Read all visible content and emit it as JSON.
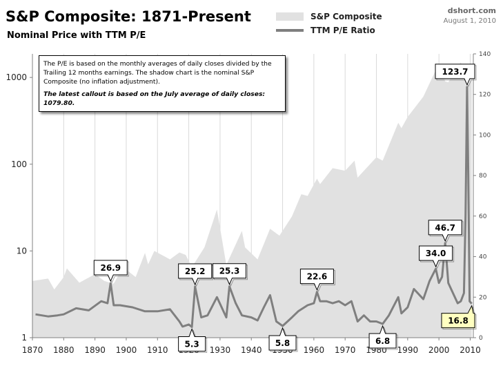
{
  "header": {
    "title": "S&P Composite: 1871-Present",
    "subtitle": "Nominal Price with TTM P/E",
    "source": "dshort.com",
    "date": "August 1, 2010"
  },
  "note": {
    "text": "The P/E is based on the monthly averages of daily closes divided by the Trailing 12 months earnings. The shadow chart is the nominal S&P Composite (no inflation adjustment).",
    "emphasis": "The latest callout is based on the July average of daily closes: 1079.80."
  },
  "colors": {
    "area": "#e1e1e1",
    "line": "#7f7f7f",
    "axis": "#808080",
    "latest_callout_fill": "#ffffc0"
  },
  "chart_data": {
    "type": "line",
    "title": "S&P Composite: 1871-Present",
    "subtitle": "Nominal Price with TTM P/E",
    "xlim": [
      1870,
      2011
    ],
    "x_ticks": [
      1870,
      1880,
      1890,
      1900,
      1910,
      1920,
      1930,
      1940,
      1950,
      1960,
      1970,
      1980,
      1990,
      2000,
      2010
    ],
    "y_left": {
      "scale": "log",
      "range": [
        1,
        1870
      ],
      "ticks": [
        1,
        10,
        100,
        1000
      ]
    },
    "y_right": {
      "scale": "linear",
      "range": [
        0,
        140
      ],
      "ticks": [
        0,
        20,
        40,
        60,
        80,
        100,
        120,
        140
      ]
    },
    "grid": {
      "vertical": true
    },
    "legend": {
      "position": "top-center",
      "entries": [
        "S&P Composite",
        "TTM P/E Ratio"
      ]
    },
    "series": [
      {
        "name": "S&P Composite",
        "kind": "area",
        "axis": "left",
        "x": [
          1870,
          1875,
          1877,
          1880,
          1881,
          1885,
          1890,
          1893,
          1896,
          1899,
          1903,
          1906,
          1907,
          1909,
          1914,
          1917,
          1919,
          1921,
          1925,
          1929,
          1932,
          1937,
          1938,
          1942,
          1946,
          1949,
          1953,
          1956,
          1958,
          1961,
          1962,
          1966,
          1970,
          1973,
          1974,
          1980,
          1982,
          1987,
          1988,
          1990,
          1995,
          2000,
          2002,
          2003,
          2007,
          2009,
          2010.5
        ],
        "values": [
          4.5,
          4.8,
          3.6,
          5.0,
          6.3,
          4.3,
          5.4,
          4.5,
          4.2,
          6.5,
          5.0,
          9.5,
          7.0,
          10.0,
          8.0,
          9.6,
          9.0,
          6.5,
          11.0,
          30.0,
          6.9,
          17.0,
          11.0,
          8.0,
          18.0,
          15.0,
          25.0,
          45.0,
          43.0,
          68.0,
          59.0,
          90.0,
          84.0,
          110.0,
          70.0,
          120.0,
          110.0,
          300.0,
          260.0,
          350.0,
          600.0,
          1450.0,
          900.0,
          880.0,
          1500.0,
          750.0,
          1080.0
        ]
      },
      {
        "name": "TTM P/E Ratio",
        "kind": "line",
        "axis": "right",
        "x": [
          1871,
          1875,
          1878,
          1880,
          1884,
          1888,
          1892,
          1894,
          1895,
          1896,
          1898,
          1902,
          1906,
          1910,
          1914,
          1917,
          1918,
          1920,
          1921,
          1922,
          1924,
          1926,
          1929,
          1932,
          1933,
          1935,
          1937,
          1940,
          1942,
          1944,
          1946,
          1948,
          1950,
          1953,
          1955,
          1958,
          1960,
          1961,
          1962,
          1964,
          1966,
          1968,
          1970,
          1972,
          1974,
          1976,
          1978,
          1980,
          1982,
          1984,
          1987,
          1988,
          1990,
          1992,
          1995,
          1997,
          1999,
          2000,
          2001,
          2002,
          2003,
          2006,
          2007,
          2008,
          2008.5,
          2009,
          2009.4,
          2009.8,
          2010.5
        ],
        "values": [
          11.5,
          10.5,
          11.0,
          11.5,
          14.5,
          13.5,
          18.0,
          17.0,
          26.9,
          16.0,
          16.0,
          15.0,
          13.0,
          13.0,
          14.0,
          8.0,
          5.5,
          6.5,
          5.3,
          25.2,
          10.0,
          11.0,
          20.0,
          10.0,
          25.3,
          17.0,
          11.0,
          10.0,
          8.5,
          15.0,
          21.0,
          8.0,
          5.8,
          10.0,
          13.0,
          16.0,
          17.0,
          22.6,
          18.0,
          18.0,
          17.0,
          18.0,
          16.0,
          18.0,
          8.0,
          11.0,
          8.0,
          8.0,
          6.8,
          11.0,
          20.0,
          12.0,
          15.0,
          24.0,
          19.0,
          28.0,
          34.0,
          27.0,
          30.0,
          46.7,
          27.0,
          17.0,
          18.0,
          22.0,
          60.0,
          123.7,
          80.0,
          18.0,
          16.8
        ]
      }
    ],
    "callouts": [
      {
        "year": 1895,
        "label": "26.9",
        "position": "above"
      },
      {
        "year": 1921,
        "label": "5.3",
        "position": "below"
      },
      {
        "year": 1922,
        "label": "25.2",
        "position": "above"
      },
      {
        "year": 1933,
        "label": "25.3",
        "position": "above"
      },
      {
        "year": 1950,
        "label": "5.8",
        "position": "below"
      },
      {
        "year": 1961,
        "label": "22.6",
        "position": "above"
      },
      {
        "year": 1982,
        "label": "6.8",
        "position": "below"
      },
      {
        "year": 1999,
        "label": "34.0",
        "position": "above"
      },
      {
        "year": 2002,
        "label": "46.7",
        "position": "above"
      },
      {
        "year": 2009,
        "label": "123.7",
        "position": "above"
      },
      {
        "year": 2010.5,
        "label": "16.8",
        "position": "below",
        "highlight": true
      }
    ]
  }
}
